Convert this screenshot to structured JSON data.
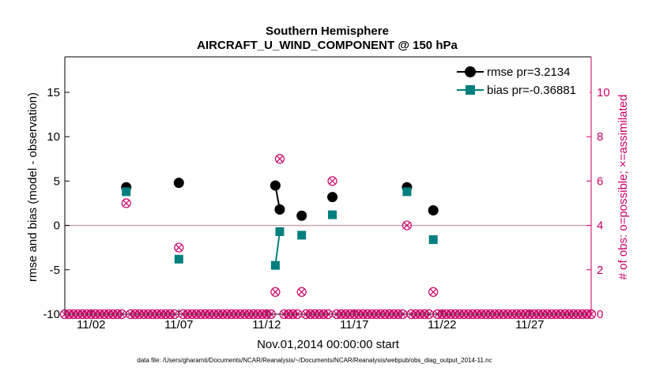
{
  "chart_data": {
    "type": "line",
    "title": [
      "Southern Hemisphere",
      "AIRCRAFT_U_WIND_COMPONENT @ 150 hPa"
    ],
    "xlabel": "Nov.01,2014 00:00:00 start",
    "ylabel": "rmse and bias (model - observation)",
    "y2label": "# of obs: o=possible; ×=assimilated",
    "footer": "data file: /Users/gharamti/Documents/NCAR/Reanalysis/~/Documents/NCAR/Reanalysis/webpub/obs_diag_output_2014-11.nc",
    "xlim": [
      0.5,
      30.5
    ],
    "ylim": [
      -10,
      19
    ],
    "y2lim": [
      0,
      11.6
    ],
    "x_ticks": [
      {
        "x": 2,
        "label": "11/02"
      },
      {
        "x": 7,
        "label": "11/07"
      },
      {
        "x": 12,
        "label": "11/12"
      },
      {
        "x": 17,
        "label": "11/17"
      },
      {
        "x": 22,
        "label": "11/22"
      },
      {
        "x": 27,
        "label": "11/27"
      }
    ],
    "y_ticks": [
      -10,
      -5,
      0,
      5,
      10,
      15
    ],
    "y2_ticks": [
      0,
      2,
      4,
      6,
      8,
      10
    ],
    "zero_line": 0,
    "colors": {
      "rmse": "#000000",
      "bias": "#007f7f",
      "obs": "#cc0066",
      "zero": "#c8a8b0"
    },
    "series": [
      {
        "name": "rmse pr=3.2134",
        "key": "rmse",
        "points": [
          [
            4,
            4.3
          ],
          [
            7,
            4.8
          ],
          [
            12.5,
            4.5
          ],
          [
            12.75,
            1.8
          ],
          [
            14,
            1.1
          ],
          [
            15.75,
            3.2
          ],
          [
            20,
            4.3
          ],
          [
            21.5,
            1.7
          ]
        ],
        "segments": [
          [
            2,
            3
          ]
        ]
      },
      {
        "name": "bias pr=-0.36881",
        "key": "bias",
        "points": [
          [
            4,
            3.8
          ],
          [
            7,
            -3.8
          ],
          [
            12.5,
            -4.5
          ],
          [
            12.75,
            -0.7
          ],
          [
            14,
            -1.1
          ],
          [
            15.75,
            1.2
          ],
          [
            20,
            3.8
          ],
          [
            21.5,
            -1.6
          ]
        ],
        "segments": [
          [
            2,
            3
          ]
        ]
      }
    ],
    "obs_possible": {
      "x_start": 0.5,
      "x_step": 0.25,
      "baseline": 0,
      "nonzero": [
        [
          4,
          5
        ],
        [
          7,
          3
        ],
        [
          12.5,
          1
        ],
        [
          12.75,
          7
        ],
        [
          14,
          1
        ],
        [
          15.75,
          6
        ],
        [
          20,
          4
        ],
        [
          21.5,
          1
        ]
      ]
    },
    "obs_assimilated": {
      "nonzero": [
        [
          4,
          5
        ],
        [
          7,
          3
        ],
        [
          12.5,
          1
        ],
        [
          12.75,
          7
        ],
        [
          14,
          1
        ],
        [
          15.75,
          6
        ],
        [
          20,
          4
        ],
        [
          21.5,
          1
        ]
      ]
    }
  }
}
